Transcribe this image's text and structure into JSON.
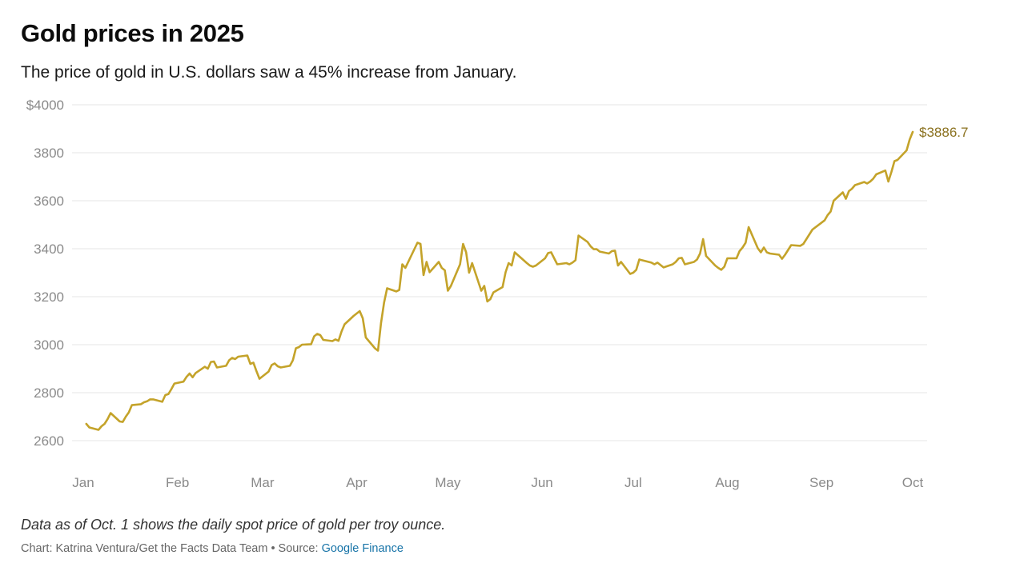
{
  "title": "Gold prices in 2025",
  "subtitle": "The price of gold in U.S. dollars saw a 45% increase from January.",
  "note": "Data as of Oct. 1 shows the daily spot price of gold per troy ounce.",
  "credit": {
    "text": "Chart: Katrina Ventura/Get the Facts Data Team • Source: ",
    "source_link": "Google Finance"
  },
  "colors": {
    "line": "#c4a32a",
    "end_label": "#8b7220",
    "grid": "#e6e6e6",
    "tick": "#8a8a8a",
    "link": "#1874a8"
  },
  "chart_data": {
    "type": "line",
    "title": "Gold prices in 2025",
    "xlabel": "",
    "ylabel": "",
    "grid": true,
    "ylim": [
      2600,
      4000
    ],
    "y_ticks": [
      2600,
      2800,
      3000,
      3200,
      3400,
      3600,
      3800,
      4000
    ],
    "y_tick_labels": [
      "2600",
      "2800",
      "3000",
      "3200",
      "3400",
      "3600",
      "3800",
      "$4000"
    ],
    "x_ticks": [
      "Jan",
      "Feb",
      "Mar",
      "Apr",
      "May",
      "Jun",
      "Jul",
      "Aug",
      "Sep",
      "Oct"
    ],
    "end_label": "$3886.7",
    "series": [
      {
        "x": [
          "2025-01-02",
          "2025-01-03",
          "2025-01-06",
          "2025-01-07",
          "2025-01-08",
          "2025-01-09",
          "2025-01-10",
          "2025-01-13",
          "2025-01-14",
          "2025-01-15",
          "2025-01-16",
          "2025-01-17",
          "2025-01-20",
          "2025-01-21",
          "2025-01-22",
          "2025-01-23",
          "2025-01-24",
          "2025-01-27",
          "2025-01-28",
          "2025-01-29",
          "2025-01-30",
          "2025-01-31",
          "2025-02-03",
          "2025-02-04",
          "2025-02-05",
          "2025-02-06",
          "2025-02-07",
          "2025-02-10",
          "2025-02-11",
          "2025-02-12",
          "2025-02-13",
          "2025-02-14",
          "2025-02-17",
          "2025-02-18",
          "2025-02-19",
          "2025-02-20",
          "2025-02-21",
          "2025-02-24",
          "2025-02-25",
          "2025-02-26",
          "2025-02-27",
          "2025-02-28",
          "2025-03-03",
          "2025-03-04",
          "2025-03-05",
          "2025-03-06",
          "2025-03-07",
          "2025-03-10",
          "2025-03-11",
          "2025-03-12",
          "2025-03-13",
          "2025-03-14",
          "2025-03-17",
          "2025-03-18",
          "2025-03-19",
          "2025-03-20",
          "2025-03-21",
          "2025-03-24",
          "2025-03-25",
          "2025-03-26",
          "2025-03-27",
          "2025-03-28",
          "2025-03-31",
          "2025-04-01",
          "2025-04-02",
          "2025-04-03",
          "2025-04-04",
          "2025-04-07",
          "2025-04-08",
          "2025-04-09",
          "2025-04-10",
          "2025-04-11",
          "2025-04-14",
          "2025-04-15",
          "2025-04-16",
          "2025-04-17",
          "2025-04-21",
          "2025-04-22",
          "2025-04-23",
          "2025-04-24",
          "2025-04-25",
          "2025-04-28",
          "2025-04-29",
          "2025-04-30",
          "2025-05-01",
          "2025-05-02",
          "2025-05-05",
          "2025-05-06",
          "2025-05-07",
          "2025-05-08",
          "2025-05-09",
          "2025-05-12",
          "2025-05-13",
          "2025-05-14",
          "2025-05-15",
          "2025-05-16",
          "2025-05-19",
          "2025-05-20",
          "2025-05-21",
          "2025-05-22",
          "2025-05-23",
          "2025-05-27",
          "2025-05-28",
          "2025-05-29",
          "2025-05-30",
          "2025-06-02",
          "2025-06-03",
          "2025-06-04",
          "2025-06-05",
          "2025-06-06",
          "2025-06-09",
          "2025-06-10",
          "2025-06-11",
          "2025-06-12",
          "2025-06-13",
          "2025-06-16",
          "2025-06-17",
          "2025-06-18",
          "2025-06-19",
          "2025-06-20",
          "2025-06-23",
          "2025-06-24",
          "2025-06-25",
          "2025-06-26",
          "2025-06-27",
          "2025-06-30",
          "2025-07-01",
          "2025-07-02",
          "2025-07-03",
          "2025-07-07",
          "2025-07-08",
          "2025-07-09",
          "2025-07-10",
          "2025-07-11",
          "2025-07-14",
          "2025-07-15",
          "2025-07-16",
          "2025-07-17",
          "2025-07-18",
          "2025-07-21",
          "2025-07-22",
          "2025-07-23",
          "2025-07-24",
          "2025-07-25",
          "2025-07-28",
          "2025-07-29",
          "2025-07-30",
          "2025-07-31",
          "2025-08-01",
          "2025-08-04",
          "2025-08-05",
          "2025-08-06",
          "2025-08-07",
          "2025-08-08",
          "2025-08-11",
          "2025-08-12",
          "2025-08-13",
          "2025-08-14",
          "2025-08-15",
          "2025-08-18",
          "2025-08-19",
          "2025-08-20",
          "2025-08-21",
          "2025-08-22",
          "2025-08-25",
          "2025-08-26",
          "2025-08-27",
          "2025-08-28",
          "2025-08-29",
          "2025-09-02",
          "2025-09-03",
          "2025-09-04",
          "2025-09-05",
          "2025-09-08",
          "2025-09-09",
          "2025-09-10",
          "2025-09-11",
          "2025-09-12",
          "2025-09-15",
          "2025-09-16",
          "2025-09-17",
          "2025-09-18",
          "2025-09-19",
          "2025-09-22",
          "2025-09-23",
          "2025-09-24",
          "2025-09-25",
          "2025-09-26",
          "2025-09-29",
          "2025-09-30",
          "2025-10-01"
        ],
        "y": [
          2670,
          2655,
          2645,
          2660,
          2670,
          2690,
          2715,
          2680,
          2678,
          2700,
          2718,
          2748,
          2752,
          2760,
          2764,
          2772,
          2772,
          2762,
          2790,
          2794,
          2815,
          2838,
          2846,
          2866,
          2880,
          2864,
          2882,
          2908,
          2900,
          2928,
          2930,
          2905,
          2912,
          2935,
          2945,
          2940,
          2950,
          2955,
          2920,
          2925,
          2890,
          2858,
          2888,
          2915,
          2922,
          2910,
          2905,
          2912,
          2935,
          2985,
          2990,
          3000,
          3002,
          3035,
          3045,
          3040,
          3020,
          3015,
          3022,
          3016,
          3055,
          3085,
          3120,
          3130,
          3140,
          3110,
          3030,
          2985,
          2975,
          3090,
          3175,
          3235,
          3222,
          3228,
          3335,
          3320,
          3425,
          3420,
          3290,
          3345,
          3302,
          3345,
          3320,
          3310,
          3225,
          3245,
          3335,
          3420,
          3385,
          3300,
          3340,
          3225,
          3245,
          3180,
          3190,
          3218,
          3240,
          3302,
          3340,
          3330,
          3385,
          3340,
          3330,
          3325,
          3330,
          3360,
          3382,
          3385,
          3360,
          3335,
          3340,
          3335,
          3342,
          3352,
          3455,
          3428,
          3410,
          3398,
          3398,
          3388,
          3380,
          3390,
          3392,
          3330,
          3345,
          3295,
          3300,
          3312,
          3355,
          3342,
          3335,
          3342,
          3332,
          3322,
          3335,
          3345,
          3360,
          3362,
          3335,
          3345,
          3355,
          3380,
          3440,
          3370,
          3330,
          3320,
          3312,
          3325,
          3360,
          3360,
          3390,
          3405,
          3425,
          3490,
          3402,
          3385,
          3405,
          3385,
          3380,
          3375,
          3358,
          3375,
          3395,
          3415,
          3412,
          3420,
          3440,
          3460,
          3480,
          3518,
          3540,
          3555,
          3600,
          3635,
          3608,
          3640,
          3650,
          3665,
          3678,
          3672,
          3680,
          3692,
          3710,
          3726,
          3680,
          3720,
          3765,
          3770,
          3810,
          3855,
          3886.7
        ]
      }
    ]
  }
}
